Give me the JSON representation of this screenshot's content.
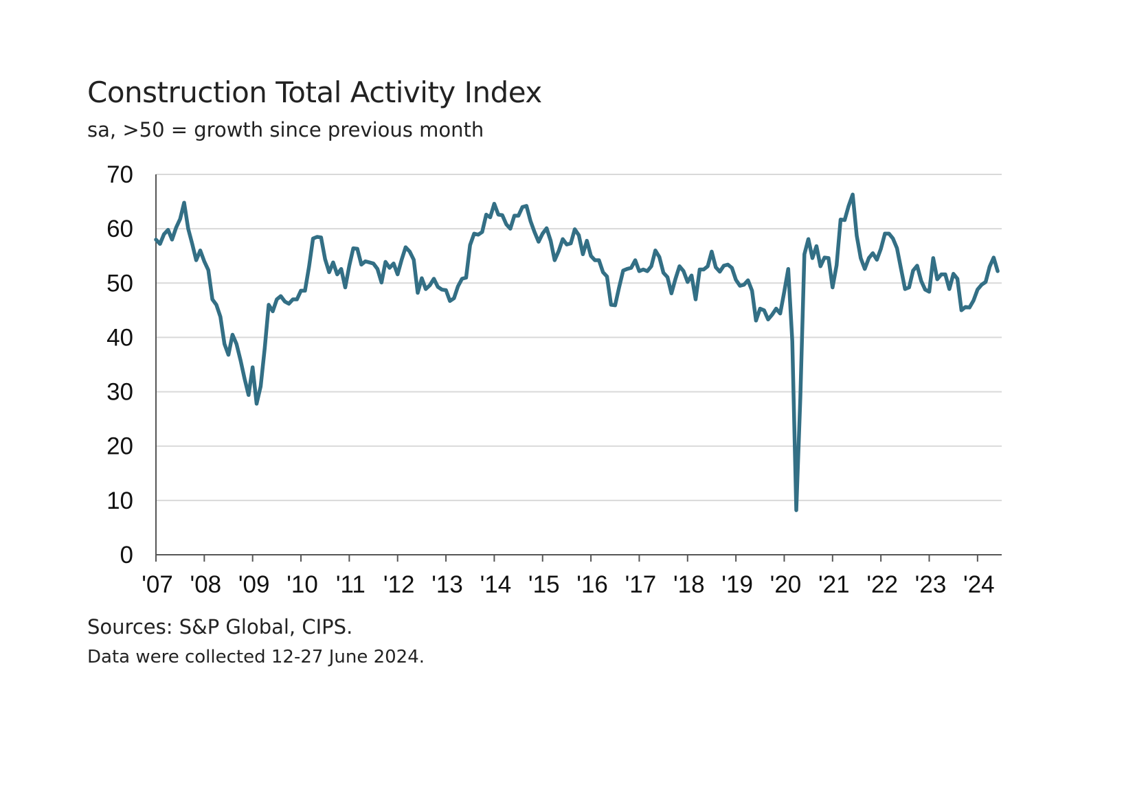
{
  "chart_data": {
    "type": "line",
    "title": "Construction Total Activity Index",
    "subtitle": "sa, >50 = growth since previous month",
    "source": "Sources: S&P Global, CIPS.",
    "note": "Data were collected 12-27 June 2024.",
    "xlabel": "",
    "ylabel": "",
    "xlim": [
      "2007-01",
      "2024-07"
    ],
    "ylim": [
      0,
      70
    ],
    "y_ticks": [
      0,
      10,
      20,
      30,
      40,
      50,
      60,
      70
    ],
    "x_ticks": [
      {
        "label": "'07",
        "date": "2007-01"
      },
      {
        "label": "'08",
        "date": "2008-01"
      },
      {
        "label": "'09",
        "date": "2009-01"
      },
      {
        "label": "'10",
        "date": "2010-01"
      },
      {
        "label": "'11",
        "date": "2011-01"
      },
      {
        "label": "'12",
        "date": "2012-01"
      },
      {
        "label": "'13",
        "date": "2013-01"
      },
      {
        "label": "'14",
        "date": "2014-01"
      },
      {
        "label": "'15",
        "date": "2015-01"
      },
      {
        "label": "'16",
        "date": "2016-01"
      },
      {
        "label": "'17",
        "date": "2017-01"
      },
      {
        "label": "'18",
        "date": "2018-01"
      },
      {
        "label": "'19",
        "date": "2019-01"
      },
      {
        "label": "'20",
        "date": "2020-01"
      },
      {
        "label": "'21",
        "date": "2021-01"
      },
      {
        "label": "'22",
        "date": "2022-01"
      },
      {
        "label": "'23",
        "date": "2023-01"
      },
      {
        "label": "'24",
        "date": "2024-01"
      }
    ],
    "grid": "horizontal",
    "legend": "none",
    "line_color": "#336f85",
    "grid_color": "#d9d9d9",
    "axis_color": "#555555",
    "series": [
      {
        "x": [
          "2007-01",
          "2007-02",
          "2007-03",
          "2007-04",
          "2007-05",
          "2007-06",
          "2007-07",
          "2007-08",
          "2007-09",
          "2007-10",
          "2007-11",
          "2007-12",
          "2008-01",
          "2008-02",
          "2008-03",
          "2008-04",
          "2008-05",
          "2008-06",
          "2008-07",
          "2008-08",
          "2008-09",
          "2008-10",
          "2008-11",
          "2008-12",
          "2009-01",
          "2009-02",
          "2009-03",
          "2009-04",
          "2009-05",
          "2009-06",
          "2009-07",
          "2009-08",
          "2009-09",
          "2009-10",
          "2009-11",
          "2009-12",
          "2010-01",
          "2010-02",
          "2010-03",
          "2010-04",
          "2010-05",
          "2010-06",
          "2010-07",
          "2010-08",
          "2010-09",
          "2010-10",
          "2010-11",
          "2010-12",
          "2011-01",
          "2011-02",
          "2011-03",
          "2011-04",
          "2011-05",
          "2011-06",
          "2011-07",
          "2011-08",
          "2011-09",
          "2011-10",
          "2011-11",
          "2011-12",
          "2012-01",
          "2012-02",
          "2012-03",
          "2012-04",
          "2012-05",
          "2012-06",
          "2012-07",
          "2012-08",
          "2012-09",
          "2012-10",
          "2012-11",
          "2012-12",
          "2013-01",
          "2013-02",
          "2013-03",
          "2013-04",
          "2013-05",
          "2013-06",
          "2013-07",
          "2013-08",
          "2013-09",
          "2013-10",
          "2013-11",
          "2013-12",
          "2014-01",
          "2014-02",
          "2014-03",
          "2014-04",
          "2014-05",
          "2014-06",
          "2014-07",
          "2014-08",
          "2014-09",
          "2014-10",
          "2014-11",
          "2014-12",
          "2015-01",
          "2015-02",
          "2015-03",
          "2015-04",
          "2015-05",
          "2015-06",
          "2015-07",
          "2015-08",
          "2015-09",
          "2015-10",
          "2015-11",
          "2015-12",
          "2016-01",
          "2016-02",
          "2016-03",
          "2016-04",
          "2016-05",
          "2016-06",
          "2016-07",
          "2016-08",
          "2016-09",
          "2016-10",
          "2016-11",
          "2016-12",
          "2017-01",
          "2017-02",
          "2017-03",
          "2017-04",
          "2017-05",
          "2017-06",
          "2017-07",
          "2017-08",
          "2017-09",
          "2017-10",
          "2017-11",
          "2017-12",
          "2018-01",
          "2018-02",
          "2018-03",
          "2018-04",
          "2018-05",
          "2018-06",
          "2018-07",
          "2018-08",
          "2018-09",
          "2018-10",
          "2018-11",
          "2018-12",
          "2019-01",
          "2019-02",
          "2019-03",
          "2019-04",
          "2019-05",
          "2019-06",
          "2019-07",
          "2019-08",
          "2019-09",
          "2019-10",
          "2019-11",
          "2019-12",
          "2020-01",
          "2020-02",
          "2020-03",
          "2020-04",
          "2020-05",
          "2020-06",
          "2020-07",
          "2020-08",
          "2020-09",
          "2020-10",
          "2020-11",
          "2020-12",
          "2021-01",
          "2021-02",
          "2021-03",
          "2021-04",
          "2021-05",
          "2021-06",
          "2021-07",
          "2021-08",
          "2021-09",
          "2021-10",
          "2021-11",
          "2021-12",
          "2022-01",
          "2022-02",
          "2022-03",
          "2022-04",
          "2022-05",
          "2022-06",
          "2022-07",
          "2022-08",
          "2022-09",
          "2022-10",
          "2022-11",
          "2022-12",
          "2023-01",
          "2023-02",
          "2023-03",
          "2023-04",
          "2023-05",
          "2023-06",
          "2023-07",
          "2023-08",
          "2023-09",
          "2023-10",
          "2023-11",
          "2023-12",
          "2024-01",
          "2024-02",
          "2024-03",
          "2024-04",
          "2024-05",
          "2024-06"
        ],
        "values": [
          58.0,
          57.2,
          59.0,
          59.8,
          58.0,
          60.2,
          61.8,
          64.8,
          60.0,
          57.2,
          54.2,
          56.0,
          54.0,
          52.4,
          47.0,
          46.0,
          43.8,
          38.8,
          36.8,
          40.5,
          38.8,
          35.8,
          32.4,
          29.4,
          34.5,
          27.8,
          31.0,
          38.0,
          46.0,
          44.8,
          47.0,
          47.6,
          46.6,
          46.2,
          47.0,
          47.0,
          48.6,
          48.6,
          53.0,
          58.2,
          58.5,
          58.4,
          54.4,
          52.0,
          53.8,
          51.6,
          52.6,
          49.2,
          53.2,
          56.4,
          56.3,
          53.4,
          54.0,
          53.8,
          53.6,
          52.6,
          50.1,
          53.9,
          52.8,
          53.6,
          51.6,
          54.3,
          56.6,
          55.8,
          54.3,
          48.2,
          50.9,
          48.9,
          49.6,
          50.8,
          49.3,
          48.8,
          48.7,
          46.7,
          47.2,
          49.4,
          50.8,
          51.0,
          57.0,
          59.1,
          58.9,
          59.4,
          62.6,
          62.1,
          64.6,
          62.6,
          62.5,
          60.8,
          60.0,
          62.4,
          62.4,
          64.0,
          64.2,
          61.4,
          59.4,
          57.6,
          59.1,
          60.1,
          57.8,
          54.2,
          55.9,
          58.1,
          57.1,
          57.3,
          59.9,
          58.8,
          55.3,
          57.8,
          55.0,
          54.2,
          54.2,
          52.0,
          51.2,
          46.0,
          45.9,
          49.2,
          52.3,
          52.6,
          52.8,
          54.2,
          52.2,
          52.5,
          52.2,
          53.1,
          56.0,
          54.8,
          51.9,
          51.1,
          48.1,
          50.8,
          53.1,
          52.2,
          50.2,
          51.4,
          47.0,
          52.5,
          52.5,
          53.1,
          55.8,
          52.9,
          52.1,
          53.2,
          53.4,
          52.8,
          50.6,
          49.5,
          49.7,
          50.5,
          48.6,
          43.1,
          45.3,
          45.0,
          43.3,
          44.2,
          45.3,
          44.4,
          48.4,
          52.6,
          39.3,
          8.2,
          28.9,
          55.3,
          58.1,
          54.6,
          56.8,
          53.1,
          54.7,
          54.6,
          49.2,
          53.3,
          61.7,
          61.6,
          64.2,
          66.3,
          58.7,
          54.6,
          52.6,
          54.6,
          55.5,
          54.3,
          56.3,
          59.1,
          59.1,
          58.2,
          56.4,
          52.6,
          48.9,
          49.2,
          52.3,
          53.2,
          50.4,
          48.8,
          48.4,
          54.6,
          50.7,
          51.6,
          51.6,
          48.9,
          51.7,
          50.8,
          45.0,
          45.6,
          45.5,
          46.8,
          48.8,
          49.7,
          50.2,
          53.0,
          54.7,
          52.2
        ]
      }
    ]
  }
}
